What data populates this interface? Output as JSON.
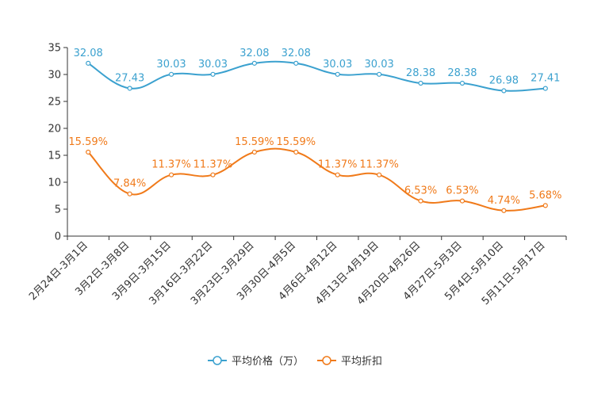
{
  "chart_data": {
    "type": "line",
    "title": "",
    "xlabel": "",
    "ylabel": "",
    "ylim": [
      0,
      35
    ],
    "yticks": [
      0,
      5,
      10,
      15,
      20,
      25,
      30,
      35
    ],
    "categories": [
      "2月24日-3月1日",
      "3月2日-3月8日",
      "3月9日-3月15日",
      "3月16日-3月22日",
      "3月23日-3月29日",
      "3月30日-4月5日",
      "4月6日-4月12日",
      "4月13日-4月19日",
      "4月20日-4月26日",
      "4月27日-5月3日",
      "5月4日-5月10日",
      "5月11日-5月17日"
    ],
    "series": [
      {
        "name": "平均价格（万）",
        "color": "#3ba1cf",
        "values": [
          32.08,
          27.43,
          30.03,
          30.03,
          32.08,
          32.08,
          30.03,
          30.03,
          28.38,
          28.38,
          26.98,
          27.41
        ],
        "labels": [
          "32.08",
          "27.43",
          "30.03",
          "30.03",
          "32.08",
          "32.08",
          "30.03",
          "30.03",
          "28.38",
          "28.38",
          "26.98",
          "27.41"
        ]
      },
      {
        "name": "平均折扣",
        "color": "#f07a1a",
        "values": [
          15.59,
          7.84,
          11.37,
          11.37,
          15.59,
          15.59,
          11.37,
          11.37,
          6.53,
          6.53,
          4.74,
          5.68
        ],
        "labels": [
          "15.59%",
          "7.84%",
          "11.37%",
          "11.37%",
          "15.59%",
          "15.59%",
          "11.37%",
          "11.37%",
          "6.53%",
          "6.53%",
          "4.74%",
          "5.68%"
        ]
      }
    ],
    "legend_position": "bottom-center",
    "grid": false
  }
}
